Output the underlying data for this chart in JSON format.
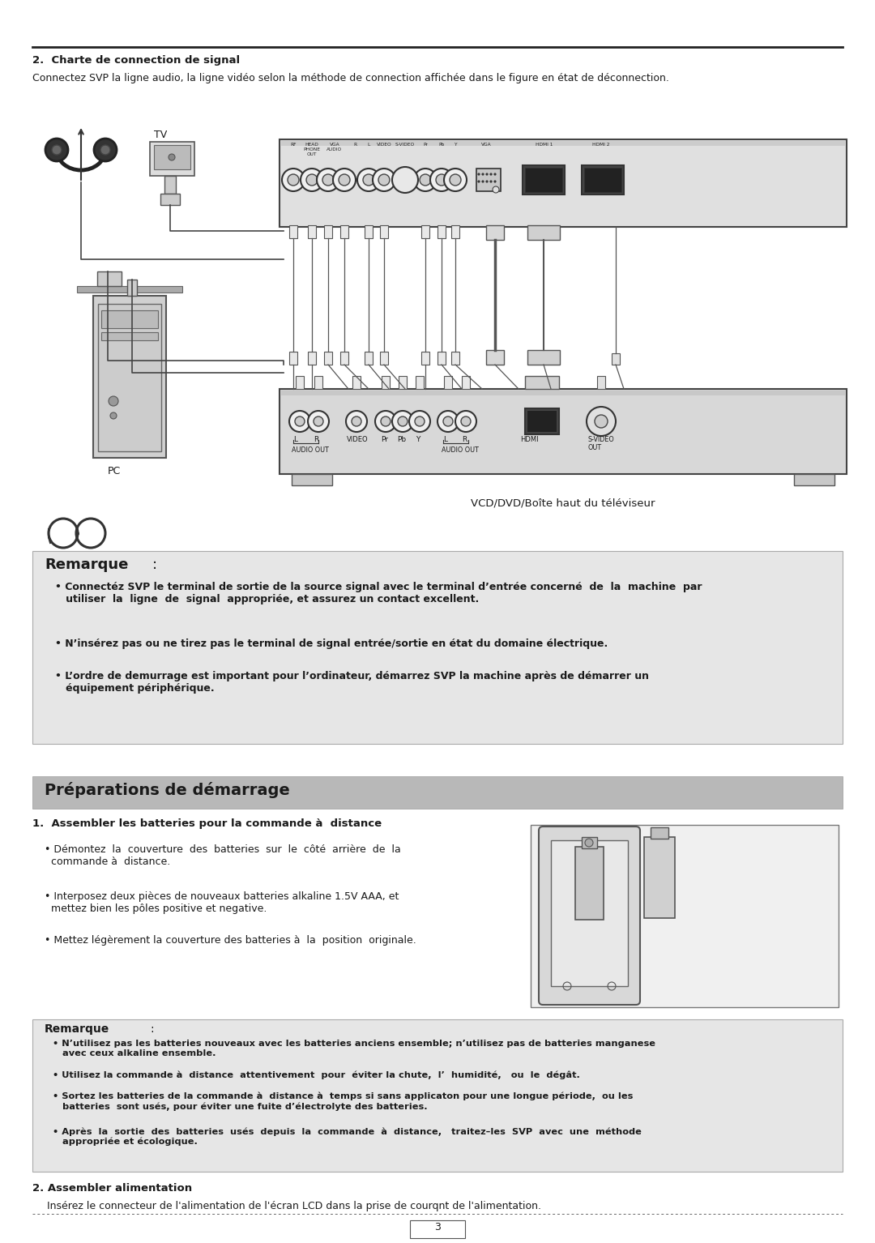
{
  "section2_title": "2.  Charte de connection de signal",
  "section2_subtitle": "Connectez SVP la ligne audio, la ligne vidéo selon la méthode de connection affichée dans le figure en état de déconnection.",
  "remarque_title": "Remarque",
  "preparations_title": "Préparations de démarrage",
  "section1_title": "1.  Assembler les batteries pour la commande à  distance",
  "section2b_title": "2. Assembler alimentation",
  "section2b_text": "Insérez le connecteur de l'alimentation de l'écran LCD dans la prise de courqnt de l'alimentation.",
  "page_number": "3",
  "bg_color": "#ffffff",
  "gray_box_color": "#e6e6e6",
  "prep_header_color": "#b8b8b8",
  "text_color": "#1a1a1a"
}
